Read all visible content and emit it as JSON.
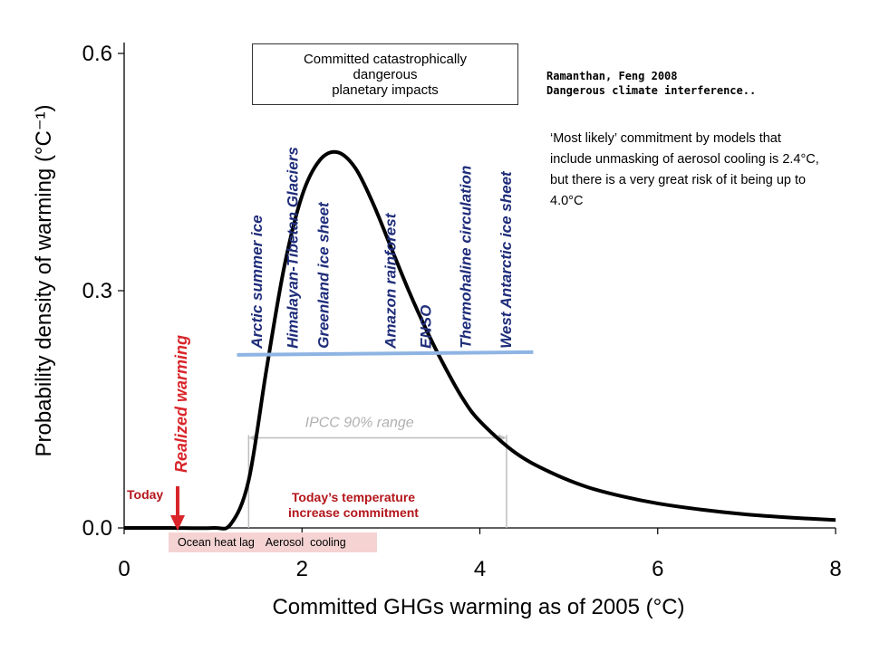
{
  "chart_data": {
    "type": "line",
    "xlabel": "Committed GHGs warming as of 2005 (°C)",
    "ylabel": "Probability density of warming (°C⁻¹)",
    "xlim": [
      0,
      8
    ],
    "ylim": [
      0,
      0.6
    ],
    "x_ticks": [
      "0",
      "2",
      "4",
      "6",
      "8"
    ],
    "y_ticks": [
      "0.0",
      "0.3",
      "0.6"
    ],
    "grid": false,
    "series": [
      {
        "color": "#000000",
        "x": [
          0,
          0.5,
          1.0,
          1.2,
          1.4,
          1.6,
          1.8,
          2.0,
          2.2,
          2.4,
          2.6,
          2.8,
          3.0,
          3.2,
          3.4,
          3.6,
          3.8,
          4.0,
          4.4,
          4.8,
          5.2,
          5.6,
          6.0,
          6.5,
          7.0,
          7.5,
          8.0
        ],
        "y": [
          0,
          0,
          0,
          0.005,
          0.06,
          0.2,
          0.33,
          0.42,
          0.465,
          0.475,
          0.455,
          0.41,
          0.355,
          0.3,
          0.25,
          0.205,
          0.165,
          0.135,
          0.095,
          0.07,
          0.052,
          0.04,
          0.031,
          0.023,
          0.017,
          0.013,
          0.01
        ]
      }
    ],
    "tipping_line": {
      "y": 0.22,
      "x_start": 1.3,
      "x_end": 4.6,
      "color": "#8eb4e3"
    },
    "tipping_points": [
      {
        "label": "Arctic summer ice",
        "x": 1.55
      },
      {
        "label": "Himalayan-Tibetan Glaciers",
        "x": 1.95
      },
      {
        "label": "Greenland ice sheet",
        "x": 2.3
      },
      {
        "label": "Amazon rainforest",
        "x": 3.05
      },
      {
        "label": "ENSO",
        "x": 3.45
      },
      {
        "label": "Thermohaline circulation",
        "x": 3.9
      },
      {
        "label": "West Antarctic ice sheet",
        "x": 4.35
      }
    ],
    "ipcc_range": {
      "label": "IPCC 90% range",
      "x_start": 1.4,
      "x_end": 4.3,
      "y": 0.114
    },
    "realized_warming": {
      "label": "Realized warming",
      "x": 0.6,
      "color": "#d9252a"
    }
  },
  "annotations": {
    "impacts_box": [
      "Committed catastrophically",
      "dangerous",
      "planetary impacts"
    ],
    "citation": [
      "Ramanthan, Feng 2008",
      "Dangerous climate interference.."
    ],
    "note": "‘Most likely’ commitment by models that include unmasking of aerosol cooling is 2.4°C, but there is a very great risk of it being up to 4.0°C",
    "today": "Today",
    "commitment": [
      "Today’s temperature",
      "increase commitment"
    ],
    "ocean_heat_lag": "Ocean heat lag",
    "aerosol_cooling": "Aerosol  cooling"
  }
}
